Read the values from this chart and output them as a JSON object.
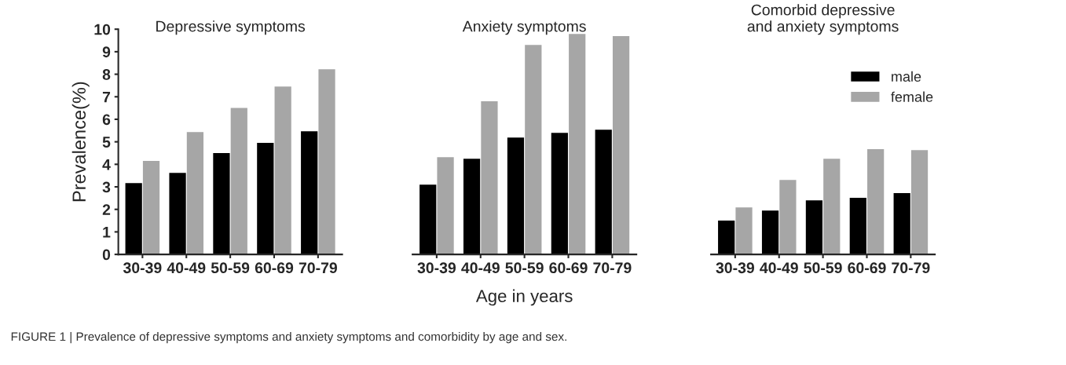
{
  "chart_data": [
    {
      "type": "bar",
      "title": "Depressive symptoms",
      "ylabel": "Prevalence(%)",
      "categories": [
        "30-39",
        "40-49",
        "50-59",
        "60-69",
        "70-79"
      ],
      "ylim": [
        0,
        10
      ],
      "yticks": [
        0,
        1,
        2,
        3,
        4,
        5,
        6,
        7,
        8,
        9,
        10
      ],
      "grid": false,
      "legend": false,
      "series": [
        {
          "color": "#000000",
          "values": [
            3.17,
            3.62,
            4.5,
            4.95,
            5.47
          ]
        },
        {
          "color": "#a6a6a6",
          "values": [
            4.15,
            5.43,
            6.5,
            7.45,
            8.22
          ]
        }
      ]
    },
    {
      "type": "bar",
      "title": "Anxiety symptoms",
      "xlabel": "Age in years",
      "categories": [
        "30-39",
        "40-49",
        "50-59",
        "60-69",
        "70-79"
      ],
      "ylim": [
        0,
        10
      ],
      "tick_labels": "x",
      "grid": false,
      "legend": false,
      "series": [
        {
          "color": "#000000",
          "values": [
            3.1,
            4.25,
            5.19,
            5.4,
            5.54
          ]
        },
        {
          "color": "#a6a6a6",
          "values": [
            4.32,
            6.8,
            9.3,
            9.79,
            9.69
          ]
        }
      ]
    },
    {
      "type": "bar",
      "title": "Comorbid depressive\nand anxiety symptoms",
      "categories": [
        "30-39",
        "40-49",
        "50-59",
        "60-69",
        "70-79"
      ],
      "ylim": [
        0,
        10
      ],
      "tick_labels": "x",
      "grid": false,
      "legend": "top right",
      "annotations": [
        "FIGURE 1 | Prevalence of depressive symptoms and anxiety symptoms and comorbidity by age and sex."
      ],
      "series": [
        {
          "name": "male",
          "color": "#000000",
          "values": [
            1.5,
            1.95,
            2.4,
            2.51,
            2.72
          ]
        },
        {
          "name": "female",
          "color": "#a6a6a6",
          "values": [
            2.09,
            3.31,
            4.25,
            4.67,
            4.63
          ]
        }
      ]
    }
  ]
}
